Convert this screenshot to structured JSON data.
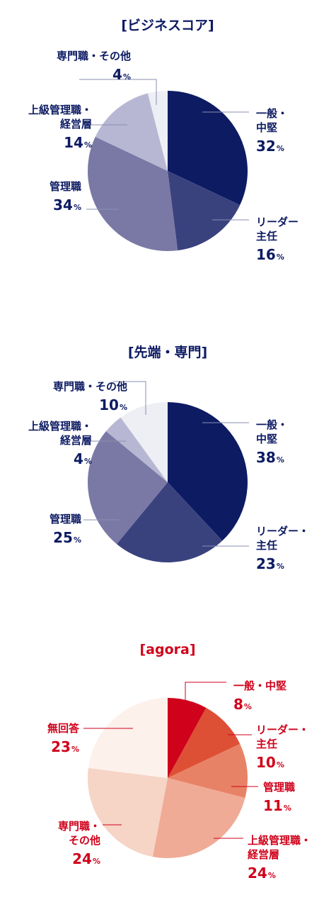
{
  "chart_data": [
    {
      "type": "pie",
      "title": "[ビジネスコア]",
      "slices": [
        {
          "label": [
            "一般・",
            "中堅"
          ],
          "value": 32,
          "color": "#0d1b63"
        },
        {
          "label": [
            "リーダー",
            "主任"
          ],
          "value": 16,
          "color": "#3a427e"
        },
        {
          "label": [
            "管理職"
          ],
          "value": 34,
          "color": "#7a79a5"
        },
        {
          "label": [
            "上級管理職・",
            "経営層"
          ],
          "value": 14,
          "color": "#b8b7d3"
        },
        {
          "label": [
            "専門職・その他"
          ],
          "value": 4,
          "color": "#eeeef5"
        }
      ]
    },
    {
      "type": "pie",
      "title": "[先端・専門]",
      "slices": [
        {
          "label": [
            "一般・",
            "中堅"
          ],
          "value": 38,
          "color": "#0d1b63"
        },
        {
          "label": [
            "リーダー・",
            "主任"
          ],
          "value": 23,
          "color": "#3a427e"
        },
        {
          "label": [
            "管理職"
          ],
          "value": 25,
          "color": "#7a79a5"
        },
        {
          "label": [
            "上級管理職・",
            "経営層"
          ],
          "value": 4,
          "color": "#b8b7d3"
        },
        {
          "label": [
            "専門職・その他"
          ],
          "value": 10,
          "color": "#eeeef5"
        }
      ]
    },
    {
      "type": "pie",
      "title": "[agora]",
      "slices": [
        {
          "label": [
            "一般・中堅"
          ],
          "value": 8,
          "color": "#d0021b"
        },
        {
          "label": [
            "リーダー・",
            "主任"
          ],
          "value": 10,
          "color": "#dd5035"
        },
        {
          "label": [
            "管理職"
          ],
          "value": 11,
          "color": "#e88266"
        },
        {
          "label": [
            "上級管理職・",
            "経営層"
          ],
          "value": 24,
          "color": "#efab96"
        },
        {
          "label": [
            "専門職・",
            "その他"
          ],
          "value": 24,
          "color": "#f6d4c6"
        },
        {
          "label": [
            "無回答"
          ],
          "value": 23,
          "color": "#fdf1ec"
        }
      ]
    }
  ],
  "unit": "%",
  "colors": {
    "navy_text": "#0d1b63",
    "red_text": "#d0021b",
    "leader_line": "#8a8fb0",
    "leader_line_red": "#d0021b"
  }
}
